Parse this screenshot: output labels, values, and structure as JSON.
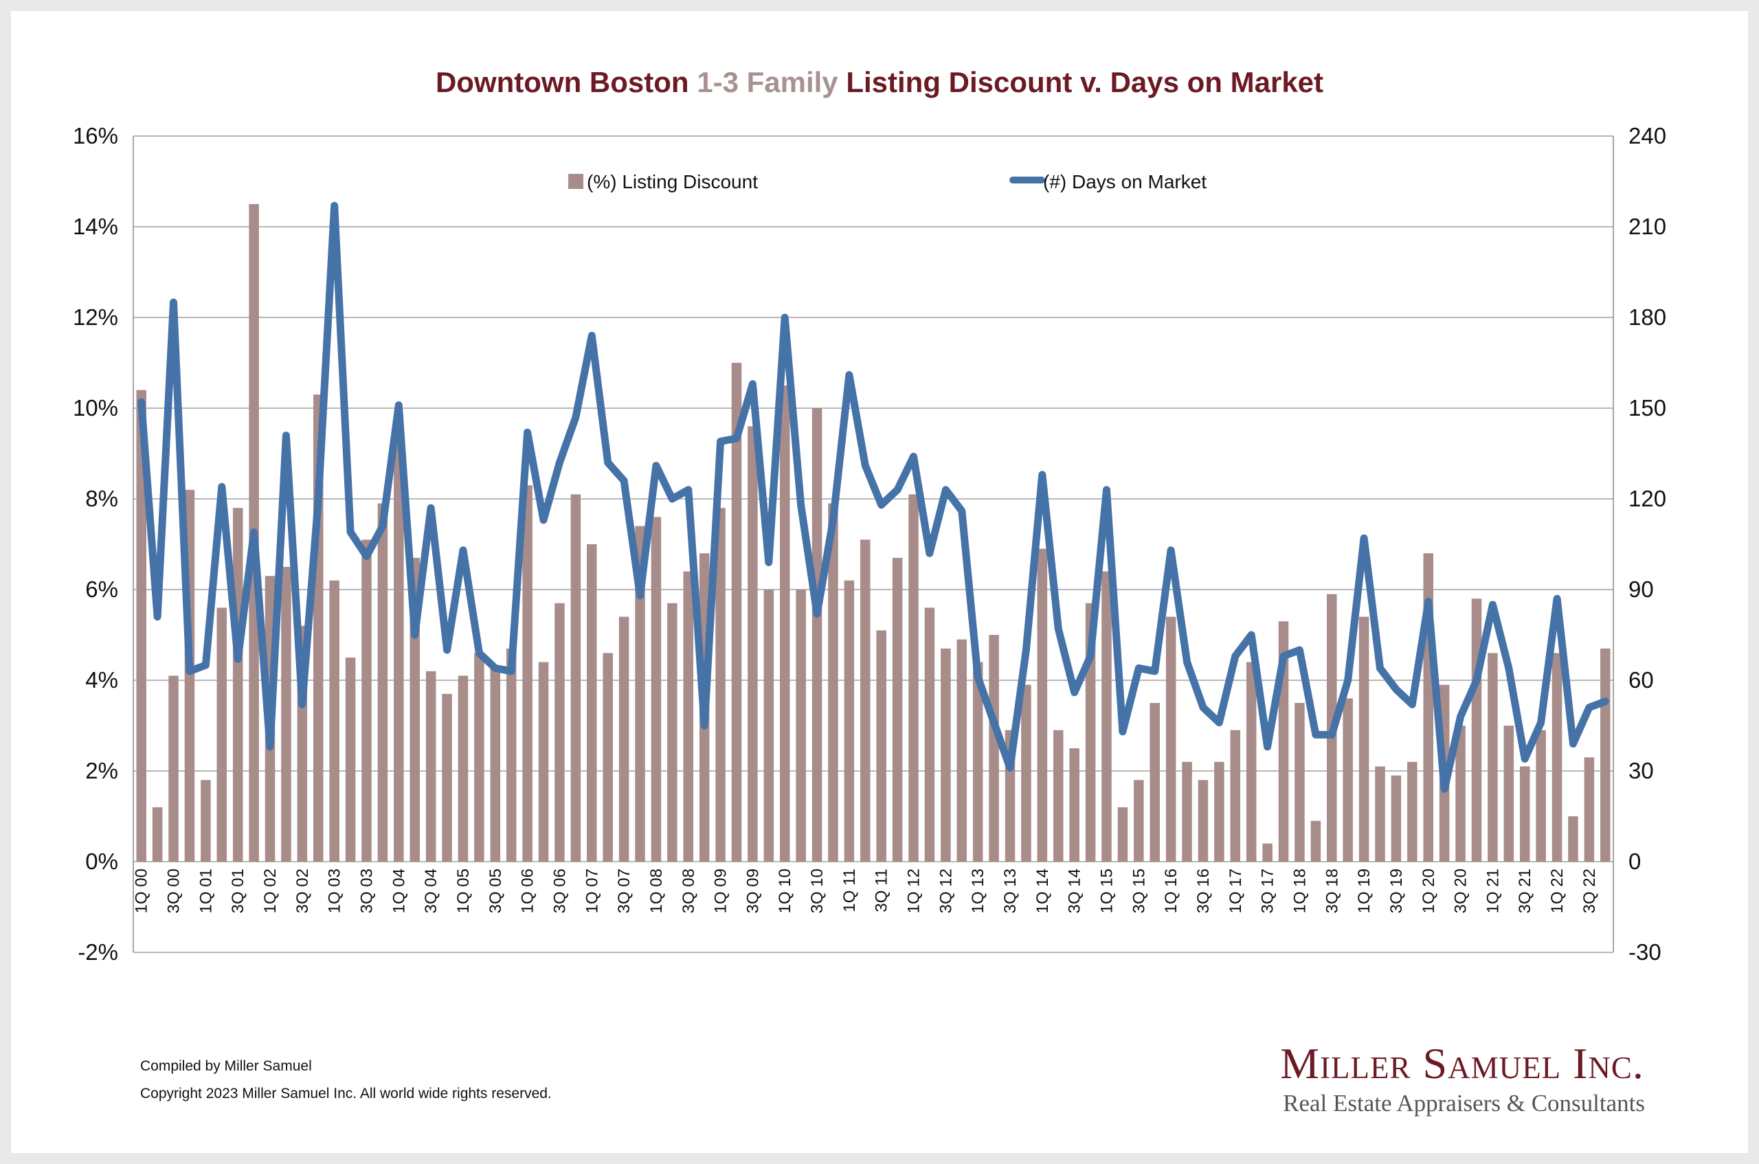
{
  "title": {
    "part1": "Downtown Boston ",
    "part2": "1-3 Family",
    "part3": " Listing Discount v. Days on Market"
  },
  "colors": {
    "title": "#6b1a24",
    "title_accent": "#a89290",
    "bars": "#a88c8a",
    "line": "#4572a7",
    "grid": "#a0a0a0"
  },
  "footer": {
    "compiled": "Compiled by Miller Samuel",
    "copyright": "Copyright 2023 Miller Samuel Inc.  All world wide rights reserved."
  },
  "brand": {
    "name": "Miller Samuel Inc.",
    "tagline": "Real Estate Appraisers & Consultants"
  },
  "chart_data": {
    "type": "bar",
    "legend_position": "top",
    "grid": true,
    "left_axis": {
      "min": -2,
      "max": 16,
      "ticks": [
        "-2%",
        "0%",
        "2%",
        "4%",
        "6%",
        "8%",
        "10%",
        "12%",
        "14%",
        "16%"
      ]
    },
    "right_axis": {
      "min": -30,
      "max": 240,
      "ticks": [
        "-30",
        "0",
        "30",
        "60",
        "90",
        "120",
        "150",
        "180",
        "210",
        "240"
      ]
    },
    "x_tick_labels": [
      "1Q 00",
      "3Q 00",
      "1Q 01",
      "3Q 01",
      "1Q 02",
      "3Q 02",
      "1Q 03",
      "3Q 03",
      "1Q 04",
      "3Q 04",
      "1Q 05",
      "3Q 05",
      "1Q 06",
      "3Q 06",
      "1Q 07",
      "3Q 07",
      "1Q 08",
      "3Q 08",
      "1Q 09",
      "3Q 09",
      "1Q 10",
      "3Q 10",
      "1Q 11",
      "3Q 11",
      "1Q 12",
      "3Q 12",
      "1Q 13",
      "3Q 13",
      "1Q 14",
      "3Q 14",
      "1Q 15",
      "3Q 15",
      "1Q 16",
      "3Q 16",
      "1Q 17",
      "3Q 17",
      "1Q 18",
      "3Q 18",
      "1Q 19",
      "3Q 19",
      "1Q 20",
      "3Q 20",
      "1Q 21",
      "3Q 21",
      "1Q 22",
      "3Q 22"
    ],
    "series": [
      {
        "name": "(%) Listing Discount",
        "kind": "bar",
        "axis": "left",
        "values": [
          10.4,
          1.2,
          4.1,
          8.2,
          1.8,
          5.6,
          7.8,
          14.5,
          6.3,
          6.5,
          5.2,
          10.3,
          6.2,
          4.5,
          7.1,
          7.9,
          9.5,
          6.7,
          4.2,
          3.7,
          4.1,
          4.6,
          4.3,
          4.7,
          8.3,
          4.4,
          5.7,
          8.1,
          7.0,
          4.6,
          5.4,
          7.4,
          7.6,
          5.7,
          6.4,
          6.8,
          7.8,
          11.0,
          9.6,
          6.0,
          10.5,
          6.0,
          10.0,
          7.9,
          6.2,
          7.1,
          5.1,
          6.7,
          8.1,
          5.6,
          4.7,
          4.9,
          4.4,
          5.0,
          2.9,
          3.9,
          6.9,
          2.9,
          2.5,
          5.7,
          6.4,
          1.2,
          1.8,
          3.5,
          5.4,
          2.2,
          1.8,
          2.2,
          2.9,
          4.4,
          0.4,
          5.3,
          3.5,
          0.9,
          5.9,
          3.6,
          5.4,
          2.1,
          1.9,
          2.2,
          6.8,
          3.9,
          3.0,
          5.8,
          4.6,
          3.0,
          2.1,
          2.9,
          4.6,
          1.0,
          2.3,
          4.7
        ]
      },
      {
        "name": "(#) Days on Market",
        "kind": "line",
        "axis": "right",
        "values": [
          152,
          81,
          185,
          63,
          65,
          124,
          67,
          109,
          38,
          141,
          52,
          120,
          217,
          109,
          101,
          111,
          151,
          75,
          117,
          70,
          103,
          69,
          64,
          63,
          142,
          113,
          132,
          147,
          174,
          132,
          126,
          88,
          131,
          120,
          123,
          45,
          139,
          140,
          158,
          99,
          180,
          118,
          82,
          113,
          161,
          131,
          118,
          123,
          134,
          102,
          123,
          116,
          61,
          46,
          31,
          70,
          128,
          77,
          56,
          68,
          123,
          43,
          64,
          63,
          103,
          66,
          51,
          46,
          68,
          75,
          38,
          68,
          70,
          42,
          42,
          60,
          107,
          64,
          57,
          52,
          86,
          24,
          48,
          60,
          85,
          64,
          34,
          46,
          87,
          39,
          51,
          53
        ]
      }
    ]
  }
}
